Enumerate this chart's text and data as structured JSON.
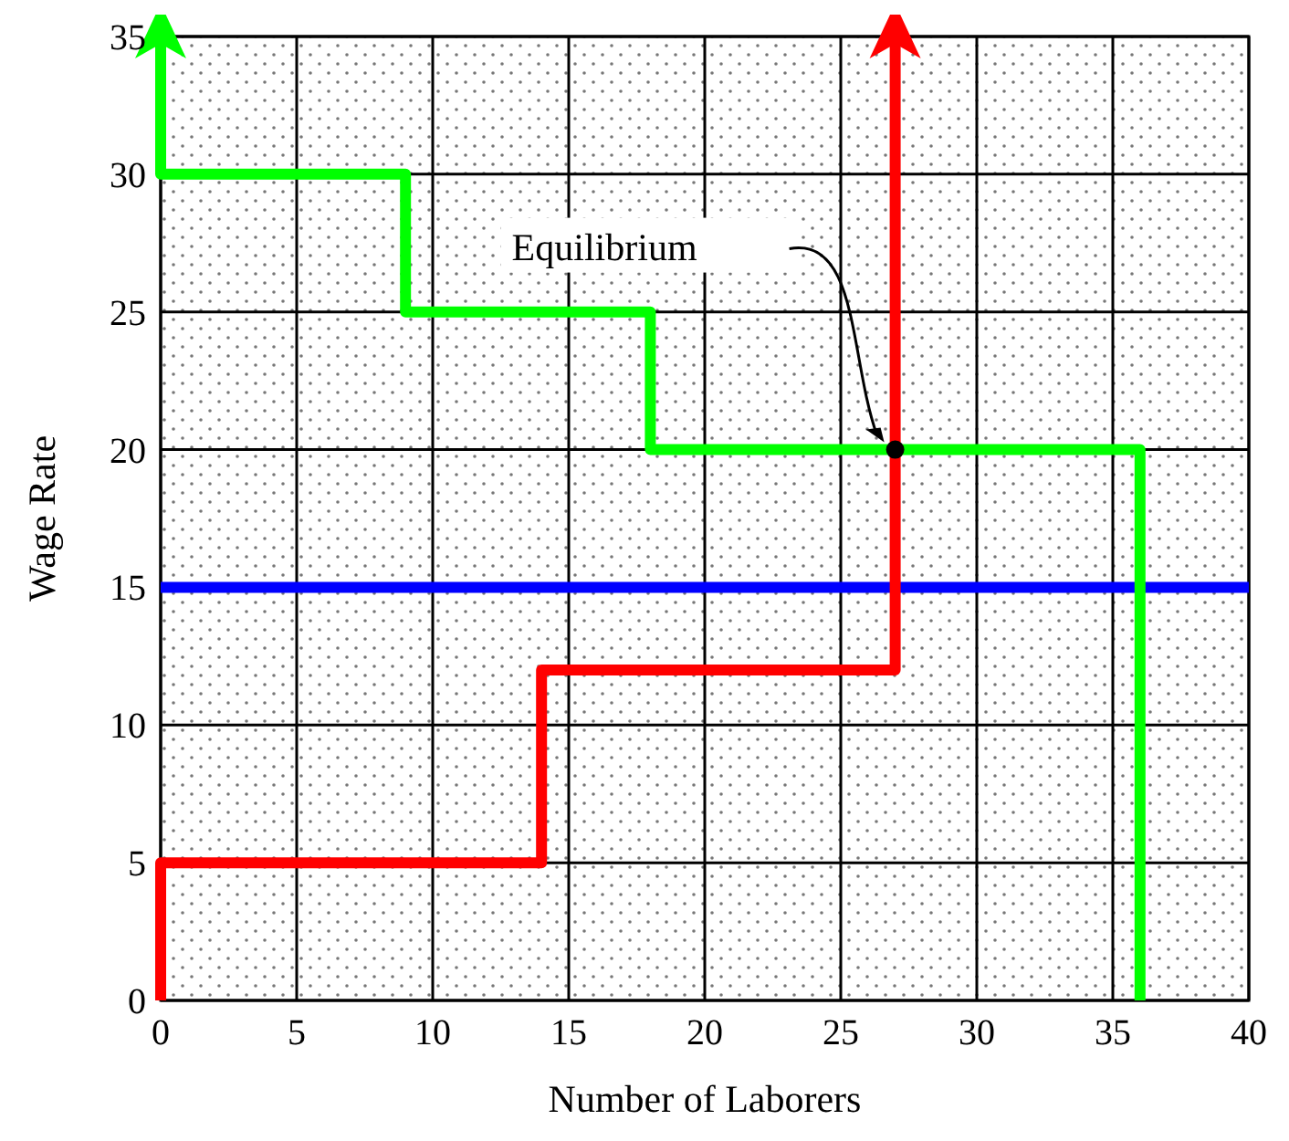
{
  "chart_data": {
    "type": "line",
    "xlabel": "Number of Laborers",
    "ylabel": "Wage Rate",
    "xlim": [
      0,
      40
    ],
    "ylim": [
      0,
      35
    ],
    "xticks": [
      0,
      5,
      10,
      15,
      20,
      25,
      30,
      35,
      40
    ],
    "yticks": [
      0,
      5,
      10,
      15,
      20,
      25,
      30,
      35
    ],
    "grid": true,
    "series": [
      {
        "color": "#00ff00",
        "x": [
          36,
          36,
          18,
          18,
          9,
          9,
          0,
          0
        ],
        "values": [
          0,
          20,
          20,
          25,
          25,
          30,
          30,
          35
        ]
      },
      {
        "color": "#ff0000",
        "x": [
          0,
          0,
          14,
          14,
          27,
          27
        ],
        "values": [
          0,
          5,
          5,
          12,
          12,
          35
        ]
      },
      {
        "type": "scatter",
        "color": "#000000",
        "marker": "circle",
        "x": [
          27
        ],
        "values": [
          20
        ]
      }
    ],
    "ref_lines": [
      {
        "axis": "y",
        "value": 15,
        "color": "#0000ff"
      }
    ],
    "annotations": [
      "Equilibrium"
    ]
  }
}
